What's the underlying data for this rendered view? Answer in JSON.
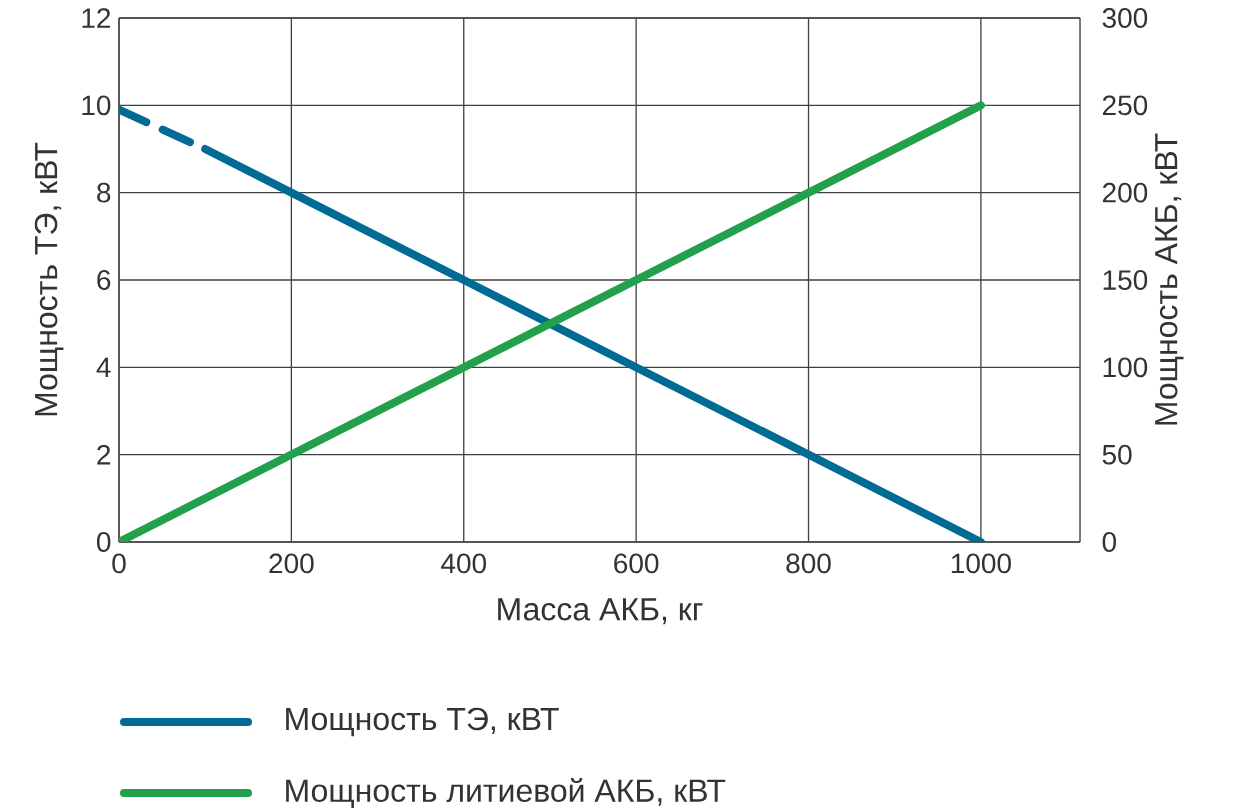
{
  "chart_data": {
    "type": "line",
    "xlabel": "Масса АКБ, кг",
    "ylabel": "Мощность ТЭ, кВТ",
    "y2label": "Мощность АКБ, кВТ",
    "xlim": [
      0,
      1115
    ],
    "xticks": [
      0,
      200,
      400,
      600,
      800,
      1000
    ],
    "ylim": [
      0,
      12
    ],
    "yticks": [
      0,
      2,
      4,
      6,
      8,
      10,
      12
    ],
    "y2lim": [
      0,
      300
    ],
    "y2ticks": [
      0,
      50,
      100,
      150,
      200,
      250,
      300
    ],
    "grid": true,
    "legend": "bottom",
    "marker": "none",
    "series": [
      {
        "color": "#006b94",
        "line_style": "dashed",
        "x": [
          0,
          100
        ],
        "values": [
          9.9,
          9.0
        ]
      },
      {
        "name": "Мощность ТЭ, кВТ",
        "color": "#006b94",
        "line_style": "solid",
        "x": [
          100,
          200,
          400,
          600,
          800,
          1000
        ],
        "values": [
          9.0,
          8,
          6,
          4,
          2,
          0
        ]
      },
      {
        "name": "Мощность литиевой АКБ, кВТ",
        "color": "#22a04b",
        "line_style": "solid",
        "axis": "y2",
        "x": [
          0,
          200,
          400,
          600,
          800,
          1000
        ],
        "values": [
          0,
          50,
          100,
          150,
          200,
          250
        ]
      }
    ]
  }
}
